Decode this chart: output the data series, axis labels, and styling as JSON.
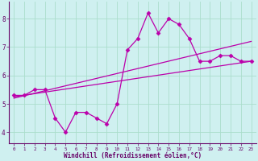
{
  "background_color": "#cff0f0",
  "grid_color": "#aaddcc",
  "line_color": "#bb00aa",
  "xlabel": "Windchill (Refroidissement éolien,°C)",
  "xlim_min": -0.5,
  "xlim_max": 23.5,
  "ylim_min": 3.6,
  "ylim_max": 8.6,
  "yticks": [
    4,
    5,
    6,
    7,
    8
  ],
  "xticks": [
    0,
    1,
    2,
    3,
    4,
    5,
    6,
    7,
    8,
    9,
    10,
    11,
    12,
    13,
    14,
    15,
    16,
    17,
    18,
    19,
    20,
    21,
    22,
    23
  ],
  "series1_x": [
    0,
    1,
    2,
    3,
    4,
    5,
    6,
    7,
    8,
    9,
    10,
    11,
    12,
    13,
    14,
    15,
    16,
    17,
    18,
    19,
    20,
    21,
    22,
    23
  ],
  "series1_y": [
    5.3,
    5.3,
    5.5,
    5.5,
    4.5,
    4.0,
    4.7,
    4.7,
    4.5,
    4.3,
    5.0,
    6.9,
    7.3,
    8.2,
    7.5,
    8.0,
    7.8,
    7.3,
    6.5,
    6.5,
    6.7,
    6.7,
    6.5,
    6.5
  ],
  "series2_x": [
    0,
    23
  ],
  "series2_y": [
    5.25,
    6.5
  ],
  "series3_x": [
    0,
    23
  ],
  "series3_y": [
    5.2,
    7.2
  ],
  "figsize": [
    3.2,
    2.0
  ],
  "dpi": 100,
  "marker": "D",
  "markersize": 2.5,
  "linewidth": 0.9
}
